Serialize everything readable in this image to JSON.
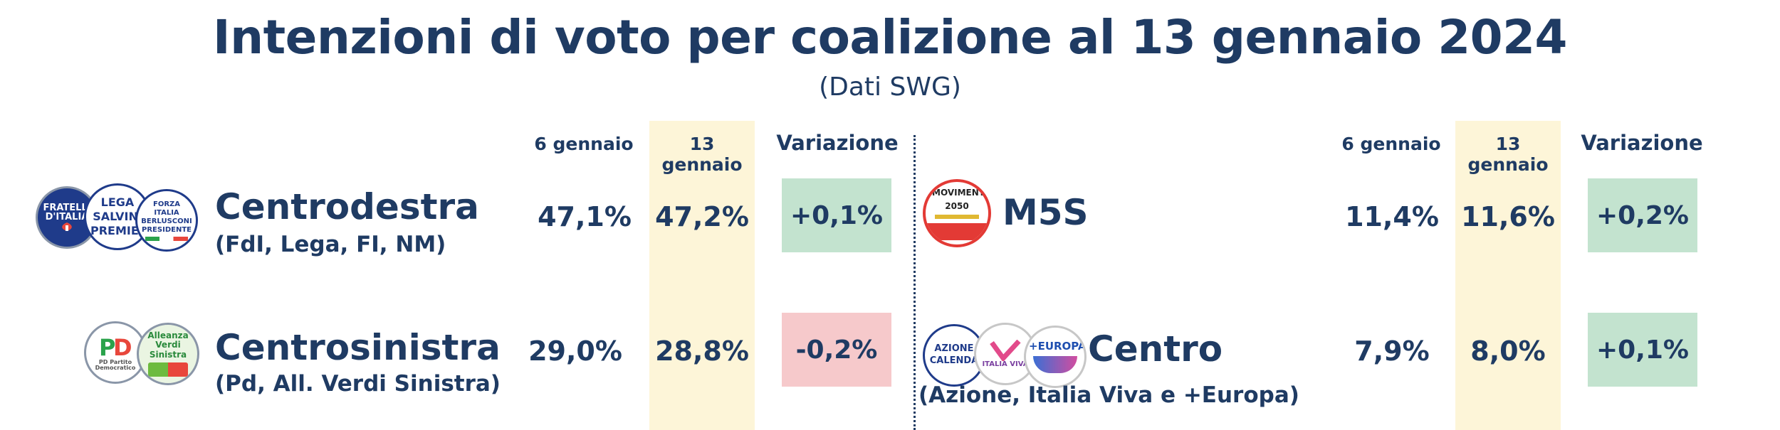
{
  "title": "Intenzioni di voto per coalizione al 13 gennaio 2024",
  "subtitle": "(Dati SWG)",
  "colors": {
    "text": "#1f3b63",
    "highlight": "#fdf5d8",
    "positive": "#c3e3cf",
    "negative": "#f6c9cb"
  },
  "chart_data": {
    "type": "table",
    "columns": [
      "6 gennaio",
      "13 gennaio",
      "Variazione"
    ],
    "rows": [
      {
        "coalition": "Centrodestra",
        "detail": "(FdI, Lega, FI, NM)",
        "jan6": "47,1%",
        "jan13": "47,2%",
        "change": "+0,1%",
        "change_value": 0.1
      },
      {
        "coalition": "Centrosinistra",
        "detail": "(Pd, All. Verdi Sinistra)",
        "jan6": "29,0%",
        "jan13": "28,8%",
        "change": "-0,2%",
        "change_value": -0.2
      },
      {
        "coalition": "M5S",
        "detail": "",
        "jan6": "11,4%",
        "jan13": "11,6%",
        "change": "+0,2%",
        "change_value": 0.2
      },
      {
        "coalition": "Centro",
        "detail": "(Azione, Italia Viva e +Europa)",
        "jan6": "7,9%",
        "jan13": "8,0%",
        "change": "+0,1%",
        "change_value": 0.1
      }
    ]
  },
  "logos": {
    "fdi": "FRATELLI D'ITALIA",
    "lega": "LEGA SALVINI PREMIER",
    "fi": "FORZA ITALIA BERLUSCONI PRESIDENTE",
    "pd": "PD Partito Democratico",
    "avs": "Alleanza Verdi Sinistra",
    "m5s": "MOVIMENTO 2050",
    "azione": "AZIONE CALENDA",
    "iv": "ITALIA VIVA",
    "europa": "+EUROPA"
  }
}
